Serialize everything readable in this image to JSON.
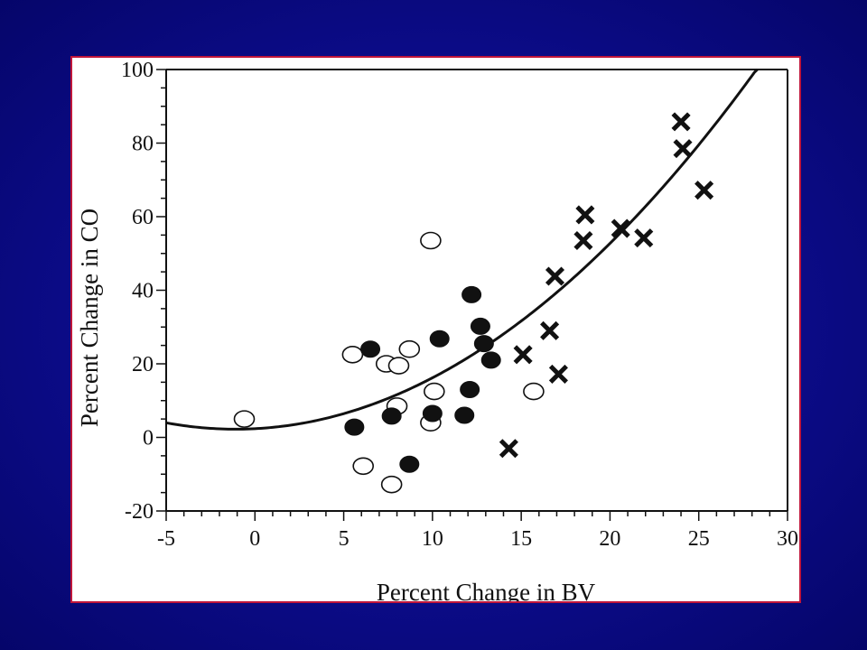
{
  "chart_data": {
    "type": "scatter",
    "title": "",
    "xlabel": "Percent Change in BV",
    "ylabel": "Percent Change in CO",
    "xlim": [
      -5,
      30
    ],
    "ylim": [
      -20,
      100
    ],
    "xticks": [
      -5,
      0,
      5,
      10,
      15,
      20,
      25,
      30
    ],
    "yticks": [
      -20,
      0,
      20,
      40,
      60,
      80,
      100
    ],
    "grid": false,
    "legend": "none",
    "series": [
      {
        "marker": "open-circle",
        "points": [
          {
            "x": -0.6,
            "y": 5
          },
          {
            "x": 5.5,
            "y": 22.5
          },
          {
            "x": 6.1,
            "y": -7.8
          },
          {
            "x": 7.4,
            "y": 20
          },
          {
            "x": 7.7,
            "y": -12.8
          },
          {
            "x": 8.1,
            "y": 19.5
          },
          {
            "x": 8.0,
            "y": 8.5
          },
          {
            "x": 8.7,
            "y": 24
          },
          {
            "x": 9.9,
            "y": 4
          },
          {
            "x": 9.9,
            "y": 53.5
          },
          {
            "x": 10.1,
            "y": 12.5
          },
          {
            "x": 15.7,
            "y": 12.5
          }
        ]
      },
      {
        "marker": "filled-circle",
        "points": [
          {
            "x": 5.6,
            "y": 2.8
          },
          {
            "x": 6.5,
            "y": 24
          },
          {
            "x": 7.7,
            "y": 5.8
          },
          {
            "x": 8.7,
            "y": -7.3
          },
          {
            "x": 10.0,
            "y": 6.5
          },
          {
            "x": 10.4,
            "y": 26.8
          },
          {
            "x": 11.8,
            "y": 6
          },
          {
            "x": 12.1,
            "y": 13
          },
          {
            "x": 12.2,
            "y": 38.8
          },
          {
            "x": 12.7,
            "y": 30.2
          },
          {
            "x": 12.9,
            "y": 25.5
          },
          {
            "x": 13.3,
            "y": 21
          }
        ]
      },
      {
        "marker": "cross",
        "points": [
          {
            "x": 14.3,
            "y": -3
          },
          {
            "x": 15.1,
            "y": 22.5
          },
          {
            "x": 16.6,
            "y": 29
          },
          {
            "x": 16.9,
            "y": 43.8
          },
          {
            "x": 17.1,
            "y": 17.2
          },
          {
            "x": 18.5,
            "y": 53.5
          },
          {
            "x": 18.6,
            "y": 60.5
          },
          {
            "x": 20.6,
            "y": 56.8
          },
          {
            "x": 21.9,
            "y": 54.2
          },
          {
            "x": 24.0,
            "y": 85.8
          },
          {
            "x": 24.1,
            "y": 78.5
          },
          {
            "x": 25.3,
            "y": 67.2
          }
        ]
      }
    ],
    "fit_curve": {
      "type": "quadratic",
      "x_range": [
        -5,
        28.3
      ],
      "points": [
        {
          "x": -5,
          "y": 4
        },
        {
          "x": -1.5,
          "y": 2.5
        },
        {
          "x": 5,
          "y": 5.8
        },
        {
          "x": 10,
          "y": 16.5
        },
        {
          "x": 15,
          "y": 31.5
        },
        {
          "x": 20,
          "y": 53
        },
        {
          "x": 25,
          "y": 79.8
        },
        {
          "x": 28.3,
          "y": 100
        }
      ]
    }
  }
}
